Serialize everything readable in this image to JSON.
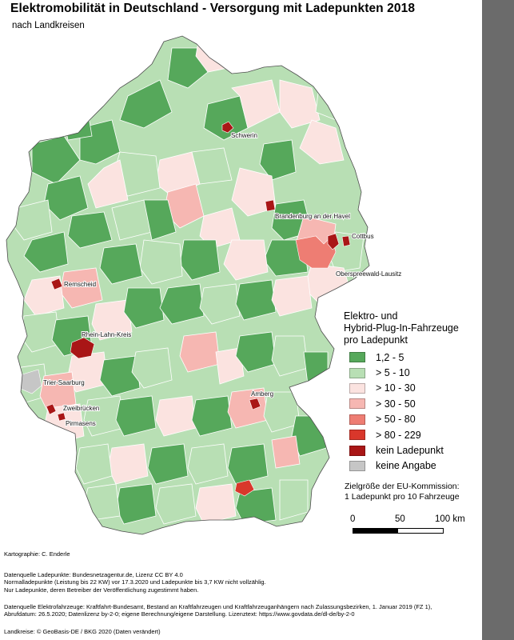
{
  "title": "Elektromobilität in Deutschland - Versorgung mit Ladepunkten 2018",
  "subtitle": "nach Landkreisen",
  "legend": {
    "title_lines": [
      "Elektro- und",
      "Hybrid-Plug-In-Fahrzeuge",
      "pro Ladepunkt"
    ],
    "items": [
      {
        "label": "1,2 - 5",
        "color": "#56a85b"
      },
      {
        "label": "> 5 - 10",
        "color": "#b8dfb4"
      },
      {
        "label": "> 10 - 30",
        "color": "#fbe3e0"
      },
      {
        "label": "> 30 - 50",
        "color": "#f6b7b2"
      },
      {
        "label": "> 50 - 80",
        "color": "#ee7d73"
      },
      {
        "label": "> 80 - 229",
        "color": "#d9372b"
      },
      {
        "label": "kein Ladepunkt",
        "color": "#a91616"
      },
      {
        "label": "keine Angabe",
        "color": "#c6c6c6"
      }
    ]
  },
  "eu_note": {
    "line1": "Zielgröße der EU-Kommission:",
    "line2": "1 Ladepunkt pro 10 Fahrzeuge"
  },
  "scale": {
    "label_0": "0",
    "label_50": "50",
    "label_100": "100 km"
  },
  "cities": [
    {
      "name": "Schwerin"
    },
    {
      "name": "Brandenburg an der Havel"
    },
    {
      "name": "Cottbus"
    },
    {
      "name": "Oberspreewald-Lausitz"
    },
    {
      "name": "Remscheid"
    },
    {
      "name": "Rhein-Lahn-Kreis"
    },
    {
      "name": "Trier-Saarburg"
    },
    {
      "name": "Amberg"
    },
    {
      "name": "Zweibrücken"
    },
    {
      "name": "Pirmasens"
    }
  ],
  "footer": {
    "kartographie": "Kartographie: C. Enderle",
    "ladepunkte_1": "Datenquelle Ladepunkte: Bundesnetzagentur.de, Lizenz CC BY 4.0",
    "ladepunkte_2": "Normalladepunkte (Leistung bis 22 KW) vor 17.3.2020 und Ladepunkte bis 3,7 KW nicht vollzählig.",
    "ladepunkte_3": "Nur Ladepunkte, deren Betreiber der Veröffentlichung zugestimmt haben.",
    "fahrzeuge_1": "Datenquelle Elektrofahrzeuge: Kraftfahrt-Bundesamt, Bestand an Kraftfahrzeugen und Kraftfahrzeuganhängern nach Zulassungsbezirken, 1. Januar 2019 (FZ 1),",
    "fahrzeuge_2": "Abrufdatum: 26.5.2020; Datenlizenz by-2-0; eigene Berechnung/eigene Darstellung. Lizenztext: https://www.govdata.de/dl-de/by-2-0",
    "landkreise": "Landkreise: © GeoBasis-DE / BKG 2020 (Daten verändert)"
  }
}
